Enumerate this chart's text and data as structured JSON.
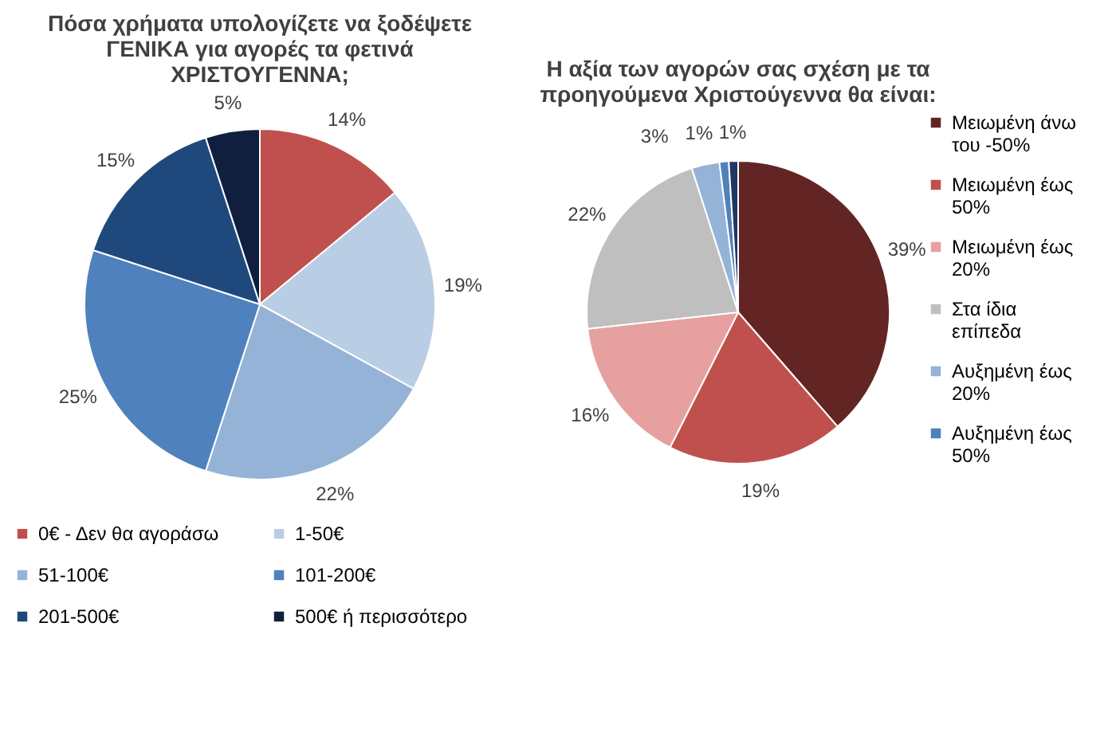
{
  "chart_data": [
    {
      "type": "pie",
      "title": "Πόσα χρήματα υπολογίζετε να ξοδέψετε ΓΕΝΙΚΑ για αγορές τα φετινά ΧΡΙΣΤΟΥΓΕΝΝΑ;",
      "categories": [
        "0€ - Δεν θα αγοράσω",
        "1-50€",
        "51-100€",
        "101-200€",
        "201-500€",
        "500€ ή περισσότερο"
      ],
      "values": [
        14,
        19,
        22,
        25,
        15,
        5
      ],
      "value_labels": [
        "14%",
        "19%",
        "22%",
        "25%",
        "15%",
        "5%"
      ],
      "colors": [
        "#c0504d",
        "#b9cde5",
        "#95b3d7",
        "#4f81bd",
        "#1f497d",
        "#0f1f3d"
      ],
      "legend": "bottom"
    },
    {
      "type": "pie",
      "title": "Η αξία των αγορών σας σχέση με τα προηγούμενα Χριστούγεννα θα είναι:",
      "categories": [
        "Μειωμένη άνω του -50%",
        "Μειωμένη έως 50%",
        "Μειωμένη έως 20%",
        "Στα ίδια επίπεδα",
        "Αυξημένη έως 20%",
        "Αυξημένη έως 50%",
        null
      ],
      "values": [
        39,
        19,
        16,
        22,
        3,
        1,
        1
      ],
      "value_labels": [
        "39%",
        "19%",
        "16%",
        "22%",
        "3%",
        "1%",
        "1%"
      ],
      "colors": [
        "#632523",
        "#c0504d",
        "#e6a0a0",
        "#bfbfbf",
        "#95b3d7",
        "#4f81bd",
        "#1f3864"
      ],
      "legend": "right"
    }
  ]
}
